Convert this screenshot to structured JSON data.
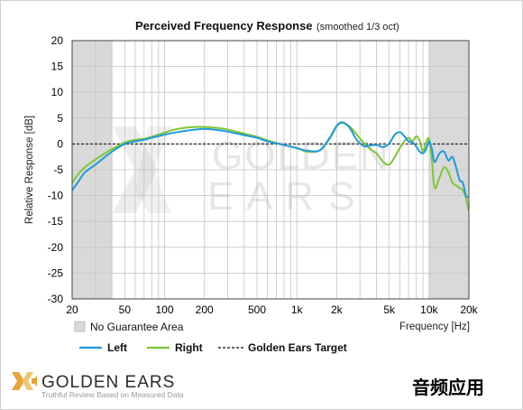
{
  "chart_data": {
    "type": "line",
    "title": "Perceived Frequency Response",
    "subtitle": "(smoothed 1/3 oct)",
    "xlabel": "Frequency [Hz]",
    "ylabel": "Relative Response [dB]",
    "x_scale": "log",
    "xlim": [
      20,
      20000
    ],
    "ylim": [
      -30,
      20
    ],
    "grid": true,
    "x_ticks": [
      {
        "v": 20,
        "label": "20"
      },
      {
        "v": 50,
        "label": "50"
      },
      {
        "v": 100,
        "label": "100"
      },
      {
        "v": 200,
        "label": "200"
      },
      {
        "v": 500,
        "label": "500"
      },
      {
        "v": 1000,
        "label": "1k"
      },
      {
        "v": 2000,
        "label": "2k"
      },
      {
        "v": 5000,
        "label": "5k"
      },
      {
        "v": 10000,
        "label": "10k"
      },
      {
        "v": 20000,
        "label": "20k"
      }
    ],
    "y_ticks": [
      20,
      15,
      10,
      5,
      0,
      -5,
      -10,
      -15,
      -20,
      -25,
      -30
    ],
    "shaded_regions": [
      [
        20,
        40
      ],
      [
        10000,
        20000
      ]
    ],
    "shaded_label": "No Guarantee Area",
    "target": {
      "name": "Golden Ears Target",
      "value": 0,
      "color": "#333333"
    },
    "series": [
      {
        "name": "Left",
        "color": "#1e9bdc",
        "x": [
          20,
          22,
          25,
          30,
          40,
          50,
          60,
          70,
          80,
          100,
          120,
          150,
          200,
          250,
          300,
          400,
          500,
          600,
          800,
          1000,
          1200,
          1500,
          1800,
          2000,
          2200,
          2500,
          2800,
          3200,
          3600,
          4000,
          4500,
          5000,
          5500,
          6000,
          6500,
          7000,
          7500,
          8000,
          8500,
          9000,
          9500,
          10000,
          10500,
          11000,
          12000,
          13000,
          14000,
          15000,
          16000,
          17000,
          18000,
          19000,
          20000
        ],
        "y": [
          -9,
          -7.5,
          -5.5,
          -4,
          -1.5,
          0,
          0.5,
          0.8,
          1.2,
          1.8,
          2.2,
          2.6,
          2.9,
          2.7,
          2.4,
          1.7,
          1.2,
          0.5,
          -0.2,
          -0.8,
          -1.3,
          -1.2,
          1.5,
          3.5,
          4.2,
          3.2,
          1.0,
          -0.4,
          -0.3,
          -0.2,
          -0.6,
          0.1,
          1.8,
          2.3,
          1.5,
          0.5,
          0.3,
          -0.5,
          -1.5,
          -1.8,
          -1.0,
          0.5,
          -1.0,
          -3.5,
          -1.8,
          -1.5,
          -3.2,
          -2.5,
          -4.5,
          -7,
          -7.5,
          -10,
          -10.3
        ]
      },
      {
        "name": "Right",
        "color": "#7ec636",
        "x": [
          20,
          22,
          25,
          30,
          40,
          50,
          60,
          70,
          80,
          100,
          120,
          150,
          200,
          250,
          300,
          400,
          500,
          600,
          800,
          1000,
          1200,
          1500,
          1800,
          2000,
          2200,
          2500,
          2800,
          3200,
          3600,
          4000,
          4500,
          5000,
          5500,
          6000,
          6500,
          7000,
          7500,
          8000,
          8500,
          9000,
          9500,
          10000,
          10500,
          11000,
          12000,
          13000,
          14000,
          15000,
          16000,
          17000,
          18000,
          19000,
          20000
        ],
        "y": [
          -7.5,
          -6,
          -4.5,
          -3,
          -1,
          0.3,
          0.8,
          1,
          1.4,
          2.2,
          2.8,
          3.2,
          3.3,
          3.1,
          2.8,
          2.0,
          1.4,
          0.7,
          -0.2,
          -0.8,
          -1.5,
          -1.2,
          1.3,
          3.4,
          4.1,
          3.4,
          2.0,
          0.2,
          -1.0,
          -1.8,
          -3.5,
          -4,
          -2.5,
          -0.8,
          0.5,
          1.2,
          0.5,
          1.5,
          0.6,
          -1.5,
          0.3,
          1.0,
          -3.0,
          -8.5,
          -6.5,
          -4.5,
          -5.5,
          -7.5,
          -8,
          -8.5,
          -9,
          -10.5,
          -13
        ]
      }
    ],
    "legend": {
      "placement": "bottom"
    }
  },
  "watermark": {
    "line1": "GOLDEN",
    "line2": "E A R S"
  },
  "footer": {
    "brand": "GOLDEN EARS",
    "tagline": "Truthful Review Based on Measured Data",
    "chinese_label": "音频应用",
    "brand_color": "#e8a33a"
  }
}
